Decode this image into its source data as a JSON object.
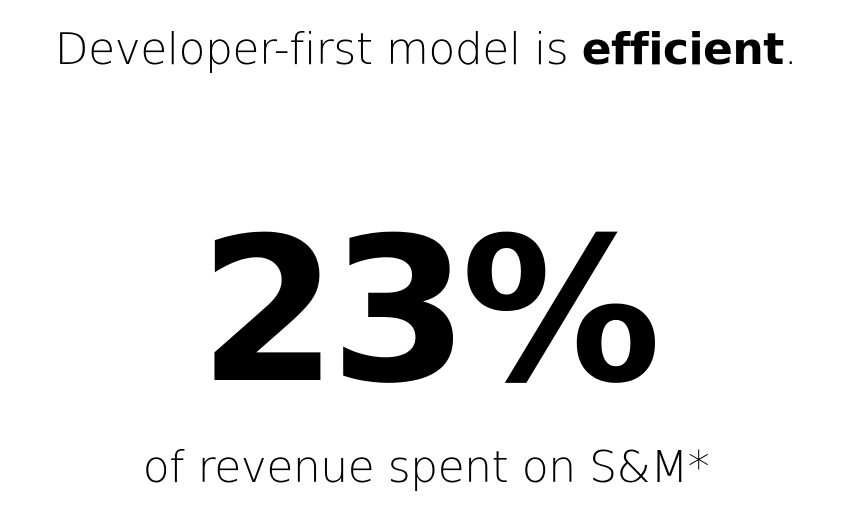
{
  "headline": {
    "prefix": "Developer-first model is ",
    "emphasis": "efficient",
    "suffix": "."
  },
  "stat": {
    "value": "23%",
    "caption": "of revenue spent on S&M*"
  }
}
